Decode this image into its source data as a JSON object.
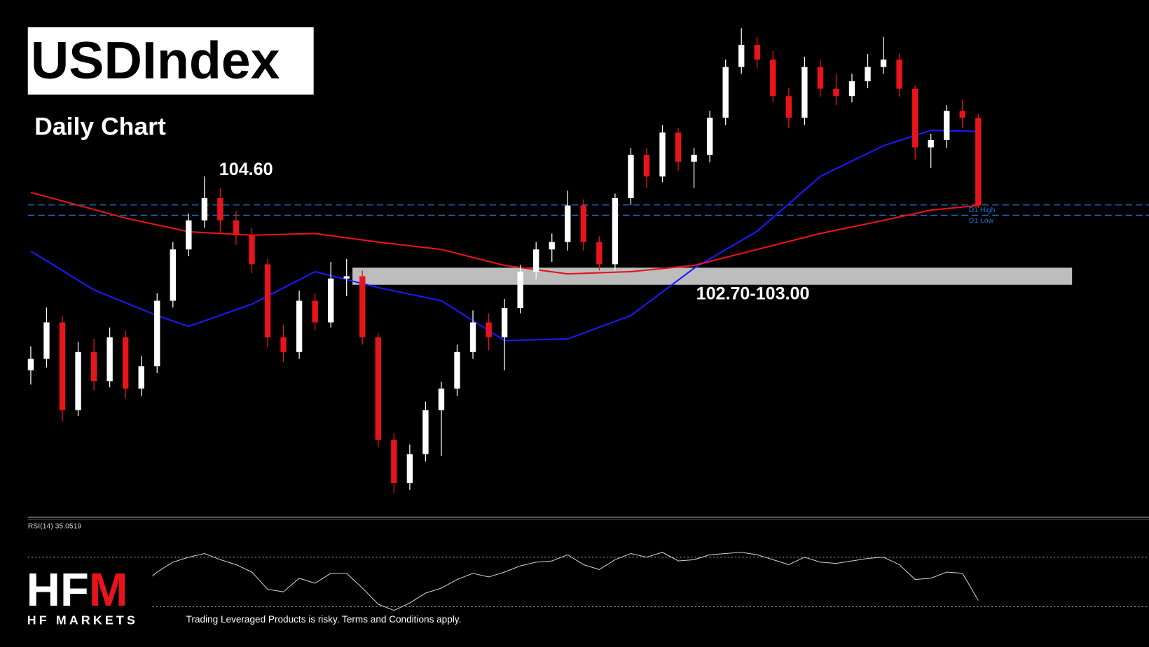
{
  "chart_data": [
    {
      "type": "candlestick",
      "title": "USDIndex",
      "subtitle": "Daily Chart",
      "up_color": "#ffffff",
      "down_color": "#e8141b",
      "ylim": [
        98.7,
        107.5
      ],
      "candles": [
        [
          101.2,
          101.62,
          100.95,
          101.4
        ],
        [
          101.4,
          102.3,
          101.25,
          102.04
        ],
        [
          102.04,
          102.15,
          100.3,
          100.5
        ],
        [
          100.5,
          101.7,
          100.4,
          101.52
        ],
        [
          101.52,
          101.75,
          100.85,
          101.01
        ],
        [
          101.01,
          101.95,
          100.9,
          101.78
        ],
        [
          101.78,
          101.9,
          100.7,
          100.88
        ],
        [
          100.88,
          101.45,
          100.75,
          101.27
        ],
        [
          101.27,
          102.55,
          101.15,
          102.42
        ],
        [
          102.42,
          103.45,
          102.3,
          103.32
        ],
        [
          103.32,
          103.95,
          103.2,
          103.83
        ],
        [
          103.83,
          104.6,
          103.7,
          104.22
        ],
        [
          104.22,
          104.4,
          103.6,
          103.83
        ],
        [
          103.83,
          104.0,
          103.4,
          103.57
        ],
        [
          103.57,
          103.7,
          102.9,
          103.06
        ],
        [
          103.06,
          103.15,
          101.6,
          101.78
        ],
        [
          101.78,
          102.0,
          101.35,
          101.52
        ],
        [
          101.52,
          102.6,
          101.4,
          102.42
        ],
        [
          102.42,
          102.55,
          101.9,
          102.04
        ],
        [
          102.04,
          103.1,
          101.95,
          102.81
        ],
        [
          102.81,
          103.15,
          102.5,
          102.85
        ],
        [
          102.85,
          102.95,
          101.65,
          101.78
        ],
        [
          101.78,
          101.85,
          99.85,
          99.98
        ],
        [
          99.98,
          100.1,
          99.05,
          99.22
        ],
        [
          99.22,
          99.9,
          99.1,
          99.73
        ],
        [
          99.73,
          100.65,
          99.6,
          100.5
        ],
        [
          100.5,
          101.0,
          99.7,
          100.88
        ],
        [
          100.88,
          101.65,
          100.75,
          101.52
        ],
        [
          101.52,
          102.25,
          101.4,
          102.04
        ],
        [
          102.04,
          102.2,
          101.55,
          101.78
        ],
        [
          101.78,
          102.45,
          101.2,
          102.29
        ],
        [
          102.29,
          103.05,
          102.2,
          102.93
        ],
        [
          102.93,
          103.45,
          102.8,
          103.32
        ],
        [
          103.32,
          103.6,
          103.1,
          103.45
        ],
        [
          103.45,
          104.35,
          103.3,
          104.09
        ],
        [
          104.09,
          104.2,
          103.3,
          103.45
        ],
        [
          103.45,
          103.55,
          102.95,
          103.06
        ],
        [
          103.06,
          104.3,
          102.95,
          104.22
        ],
        [
          104.22,
          105.1,
          104.1,
          104.98
        ],
        [
          104.98,
          105.1,
          104.4,
          104.6
        ],
        [
          104.6,
          105.5,
          104.5,
          105.37
        ],
        [
          105.37,
          105.45,
          104.7,
          104.86
        ],
        [
          104.86,
          105.1,
          104.4,
          104.98
        ],
        [
          104.98,
          105.75,
          104.85,
          105.63
        ],
        [
          105.63,
          106.65,
          105.5,
          106.52
        ],
        [
          106.52,
          107.2,
          106.4,
          106.91
        ],
        [
          106.91,
          107.05,
          106.5,
          106.65
        ],
        [
          106.65,
          106.8,
          105.9,
          106.01
        ],
        [
          106.01,
          106.15,
          105.45,
          105.63
        ],
        [
          105.63,
          106.7,
          105.5,
          106.52
        ],
        [
          106.52,
          106.65,
          106.0,
          106.14
        ],
        [
          106.14,
          106.4,
          105.85,
          106.01
        ],
        [
          106.01,
          106.4,
          105.9,
          106.27
        ],
        [
          106.27,
          106.75,
          106.15,
          106.52
        ],
        [
          106.52,
          107.05,
          106.4,
          106.65
        ],
        [
          106.65,
          106.75,
          106.0,
          106.14
        ],
        [
          106.14,
          106.2,
          104.9,
          105.11
        ],
        [
          105.11,
          105.35,
          104.75,
          105.24
        ],
        [
          105.24,
          105.85,
          105.1,
          105.75
        ],
        [
          105.75,
          105.95,
          105.45,
          105.63
        ],
        [
          105.63,
          105.7,
          104.05,
          104.09
        ]
      ],
      "lines": [
        {
          "color": "#1a1aff",
          "x": [
            0,
            4,
            8,
            10,
            14,
            18,
            22,
            26,
            30,
            34,
            38,
            42,
            46,
            50,
            54,
            57,
            60
          ],
          "values": [
            103.29,
            102.61,
            102.16,
            101.97,
            102.36,
            102.93,
            102.65,
            102.42,
            101.72,
            101.75,
            102.16,
            102.99,
            103.64,
            104.6,
            105.14,
            105.41,
            105.39
          ]
        },
        {
          "color": "#e8141b",
          "x": [
            0,
            6,
            10,
            14,
            18,
            22,
            26,
            30,
            34,
            38,
            42,
            46,
            50,
            54,
            57,
            60
          ],
          "values": [
            104.32,
            103.87,
            103.63,
            103.57,
            103.6,
            103.45,
            103.32,
            103.04,
            102.89,
            102.93,
            103.04,
            103.32,
            103.6,
            103.83,
            104.01,
            104.09
          ]
        }
      ],
      "levels": [
        {
          "value": 104.1,
          "label": "D1 High"
        },
        {
          "value": 103.92,
          "label": "D1 Low"
        }
      ],
      "level_color": "#1e6fd0",
      "zone": {
        "low": 102.7,
        "high": 103.0,
        "label": "102.70-103.00",
        "color": "#bdbdbd"
      },
      "annotation": {
        "value": 104.6,
        "label": "104.60",
        "candle": 11
      }
    },
    {
      "type": "line",
      "title": "RSI(14) 35.0519",
      "color": "#d0d0d0",
      "ylim": [
        20,
        100
      ],
      "levels": [
        70,
        30
      ],
      "values": [
        45,
        55,
        38,
        50,
        44,
        52,
        40,
        47,
        58,
        66,
        70,
        73,
        68,
        64,
        58,
        44,
        42,
        53,
        49,
        57,
        57,
        45,
        32,
        27,
        33,
        41,
        45,
        52,
        57,
        54,
        58,
        63,
        66,
        67,
        72,
        64,
        60,
        68,
        73,
        70,
        74,
        67,
        68,
        72,
        73,
        74,
        72,
        68,
        64,
        70,
        66,
        65,
        67,
        69,
        70,
        64,
        52,
        53,
        58,
        57,
        35.0519
      ]
    }
  ],
  "footer": {
    "logo": [
      "HF",
      "M"
    ],
    "company": "HF MARKETS",
    "disclaimer": "Trading Leveraged Products is risky. Terms and Conditions apply."
  }
}
